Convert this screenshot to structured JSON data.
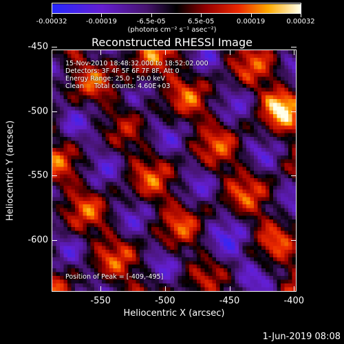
{
  "chart_data": {
    "type": "heatmap",
    "title": "Reconstructed RHESSI Image",
    "xlabel": "Heliocentric X (arcsec)",
    "ylabel": "Heliocentric Y (arcsec)",
    "xlim": [
      -588,
      -398
    ],
    "ylim": [
      -640,
      -452
    ],
    "x_ticks": [
      -550,
      -500,
      -450,
      -400
    ],
    "y_ticks": [
      -450,
      -500,
      -550,
      -600
    ],
    "colorbar": {
      "ticks": [
        "-0.00032",
        "-0.00019",
        "-6.5e-05",
        "6.5e-05",
        "0.00019",
        "0.00032"
      ],
      "range": [
        -0.00032,
        0.00032
      ],
      "units": "(photons cm⁻² s⁻¹ asec⁻²)",
      "colormap": "blue-purple-black-red-yellow-white"
    },
    "annotations": [
      "15-Nov-2010 18:48:32.000 to 18:52:02.000",
      "Detectors: 3F 4F 5F 6F 7F 8F, Att 0",
      "Energy Range: 25.0 - 50.0 keV",
      "Clean     Total counts: 4.60E+03",
      "Position of Peak = [-409,-495]"
    ],
    "peak": {
      "x": -409,
      "y": -495
    }
  },
  "footer": {
    "timestamp": "1-Jun-2019 08:08"
  }
}
